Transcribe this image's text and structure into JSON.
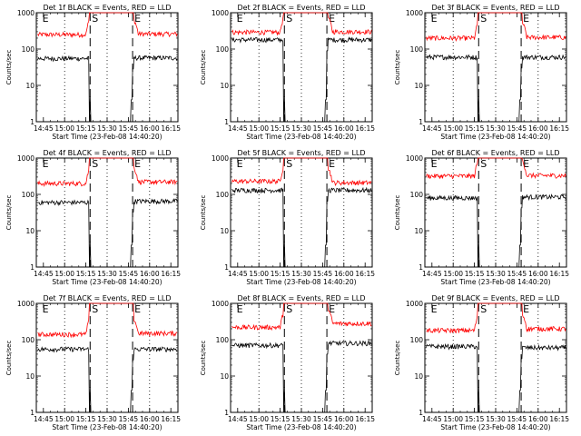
{
  "chart_data": [
    {
      "type": "line",
      "title": "Det 1f BLACK = Events, RED = LLD",
      "ylabel": "Counts/sec",
      "xlabel": "Start Time (23-Feb-08 14:40:20)",
      "yscale": "log",
      "ylim": [
        1,
        1000
      ],
      "xlim": [
        "14:40",
        "16:20"
      ],
      "xticks": [
        "14:45",
        "15:00",
        "15:15",
        "15:30",
        "15:45",
        "16:00",
        "16:15"
      ],
      "yticks": [
        "1",
        "10",
        "100",
        "1000"
      ],
      "markers": [
        {
          "t": "14:43",
          "label": "E"
        },
        {
          "t": "15:18",
          "label": "S"
        },
        {
          "t": "15:48",
          "label": "E"
        }
      ],
      "series": [
        {
          "color": "#ff0000",
          "pre_level": 250,
          "post_level": 260
        },
        {
          "color": "#000000",
          "pre_level": 55,
          "post_level": 57
        }
      ]
    },
    {
      "type": "line",
      "title": "Det 2f BLACK = Events, RED = LLD",
      "ylabel": "Counts/sec",
      "xlabel": "Start Time (23-Feb-08 14:40:20)",
      "yscale": "log",
      "ylim": [
        1,
        1000
      ],
      "xlim": [
        "14:40",
        "16:20"
      ],
      "xticks": [
        "14:45",
        "15:00",
        "15:15",
        "15:30",
        "15:45",
        "16:00",
        "16:15"
      ],
      "yticks": [
        "1",
        "10",
        "100",
        "1000"
      ],
      "markers": [
        {
          "t": "14:43",
          "label": "E"
        },
        {
          "t": "15:18",
          "label": "S"
        },
        {
          "t": "15:48",
          "label": "E"
        }
      ],
      "series": [
        {
          "color": "#ff0000",
          "pre_level": 290,
          "post_level": 300
        },
        {
          "color": "#000000",
          "pre_level": 180,
          "post_level": 180
        }
      ]
    },
    {
      "type": "line",
      "title": "Det 3f BLACK = Events, RED = LLD",
      "ylabel": "Counts/sec",
      "xlabel": "Start Time (23-Feb-08 14:40:20)",
      "yscale": "log",
      "ylim": [
        1,
        1000
      ],
      "xlim": [
        "14:40",
        "16:20"
      ],
      "xticks": [
        "14:45",
        "15:00",
        "15:15",
        "15:30",
        "15:45",
        "16:00",
        "16:15"
      ],
      "yticks": [
        "1",
        "10",
        "100",
        "1000"
      ],
      "markers": [
        {
          "t": "14:43",
          "label": "E"
        },
        {
          "t": "15:18",
          "label": "S"
        },
        {
          "t": "15:48",
          "label": "E"
        }
      ],
      "series": [
        {
          "color": "#ff0000",
          "pre_level": 200,
          "post_level": 210
        },
        {
          "color": "#000000",
          "pre_level": 60,
          "post_level": 60
        }
      ]
    },
    {
      "type": "line",
      "title": "Det 4f BLACK = Events, RED = LLD",
      "ylabel": "Counts/sec",
      "xlabel": "Start Time (23-Feb-08 14:40:20)",
      "yscale": "log",
      "ylim": [
        1,
        1000
      ],
      "xlim": [
        "14:40",
        "16:20"
      ],
      "xticks": [
        "14:45",
        "15:00",
        "15:15",
        "15:30",
        "15:45",
        "16:00",
        "16:15"
      ],
      "yticks": [
        "1",
        "10",
        "100",
        "1000"
      ],
      "markers": [
        {
          "t": "14:43",
          "label": "E"
        },
        {
          "t": "15:18",
          "label": "S"
        },
        {
          "t": "15:48",
          "label": "E"
        }
      ],
      "series": [
        {
          "color": "#ff0000",
          "pre_level": 200,
          "post_level": 220
        },
        {
          "color": "#000000",
          "pre_level": 60,
          "post_level": 65
        }
      ]
    },
    {
      "type": "line",
      "title": "Det 5f BLACK = Events, RED = LLD",
      "ylabel": "Counts/sec",
      "xlabel": "Start Time (23-Feb-08 14:40:20)",
      "yscale": "log",
      "ylim": [
        1,
        1000
      ],
      "xlim": [
        "14:40",
        "16:20"
      ],
      "xticks": [
        "14:45",
        "15:00",
        "15:15",
        "15:30",
        "15:45",
        "16:00",
        "16:15"
      ],
      "yticks": [
        "1",
        "10",
        "100",
        "1000"
      ],
      "markers": [
        {
          "t": "14:43",
          "label": "E"
        },
        {
          "t": "15:18",
          "label": "S"
        },
        {
          "t": "15:48",
          "label": "E"
        }
      ],
      "series": [
        {
          "color": "#ff0000",
          "pre_level": 230,
          "post_level": 210
        },
        {
          "color": "#000000",
          "pre_level": 130,
          "post_level": 130
        }
      ]
    },
    {
      "type": "line",
      "title": "Det 6f BLACK = Events, RED = LLD",
      "ylabel": "Counts/sec",
      "xlabel": "Start Time (23-Feb-08 14:40:20)",
      "yscale": "log",
      "ylim": [
        1,
        1000
      ],
      "xlim": [
        "14:40",
        "16:20"
      ],
      "xticks": [
        "14:45",
        "15:00",
        "15:15",
        "15:30",
        "15:45",
        "16:00",
        "16:15"
      ],
      "yticks": [
        "1",
        "10",
        "100",
        "1000"
      ],
      "markers": [
        {
          "t": "14:43",
          "label": "E"
        },
        {
          "t": "15:18",
          "label": "S"
        },
        {
          "t": "15:48",
          "label": "E"
        }
      ],
      "series": [
        {
          "color": "#ff0000",
          "pre_level": 320,
          "post_level": 330
        },
        {
          "color": "#000000",
          "pre_level": 80,
          "post_level": 85
        }
      ]
    },
    {
      "type": "line",
      "title": "Det 7f BLACK = Events, RED = LLD",
      "ylabel": "Counts/sec",
      "xlabel": "Start Time (23-Feb-08 14:40:20)",
      "yscale": "log",
      "ylim": [
        1,
        1000
      ],
      "xlim": [
        "14:40",
        "16:20"
      ],
      "xticks": [
        "14:45",
        "15:00",
        "15:15",
        "15:30",
        "15:45",
        "16:00",
        "16:15"
      ],
      "yticks": [
        "1",
        "10",
        "100",
        "1000"
      ],
      "markers": [
        {
          "t": "14:43",
          "label": "E"
        },
        {
          "t": "15:18",
          "label": "S"
        },
        {
          "t": "15:48",
          "label": "E"
        }
      ],
      "series": [
        {
          "color": "#ff0000",
          "pre_level": 140,
          "post_level": 150
        },
        {
          "color": "#000000",
          "pre_level": 55,
          "post_level": 55
        }
      ]
    },
    {
      "type": "line",
      "title": "Det 8f BLACK = Events, RED = LLD",
      "ylabel": "Counts/sec",
      "xlabel": "Start Time (23-Feb-08 14:40:20)",
      "yscale": "log",
      "ylim": [
        1,
        1000
      ],
      "xlim": [
        "14:40",
        "16:20"
      ],
      "xticks": [
        "14:45",
        "15:00",
        "15:15",
        "15:30",
        "15:45",
        "16:00",
        "16:15"
      ],
      "yticks": [
        "1",
        "10",
        "100",
        "1000"
      ],
      "markers": [
        {
          "t": "14:43",
          "label": "E"
        },
        {
          "t": "15:18",
          "label": "S"
        },
        {
          "t": "15:48",
          "label": "E"
        }
      ],
      "series": [
        {
          "color": "#ff0000",
          "pre_level": 220,
          "post_level": 280
        },
        {
          "color": "#000000",
          "pre_level": 70,
          "post_level": 80
        }
      ]
    },
    {
      "type": "line",
      "title": "Det 9f BLACK = Events, RED = LLD",
      "ylabel": "Counts/sec",
      "xlabel": "Start Time (23-Feb-08 14:40:20)",
      "yscale": "log",
      "ylim": [
        1,
        1000
      ],
      "xlim": [
        "14:40",
        "16:20"
      ],
      "xticks": [
        "14:45",
        "15:00",
        "15:15",
        "15:30",
        "15:45",
        "16:00",
        "16:15"
      ],
      "yticks": [
        "1",
        "10",
        "100",
        "1000"
      ],
      "markers": [
        {
          "t": "14:43",
          "label": "E"
        },
        {
          "t": "15:18",
          "label": "S"
        },
        {
          "t": "15:48",
          "label": "E"
        }
      ],
      "series": [
        {
          "color": "#ff0000",
          "pre_level": 180,
          "post_level": 200
        },
        {
          "color": "#000000",
          "pre_level": 65,
          "post_level": 60
        }
      ]
    }
  ]
}
